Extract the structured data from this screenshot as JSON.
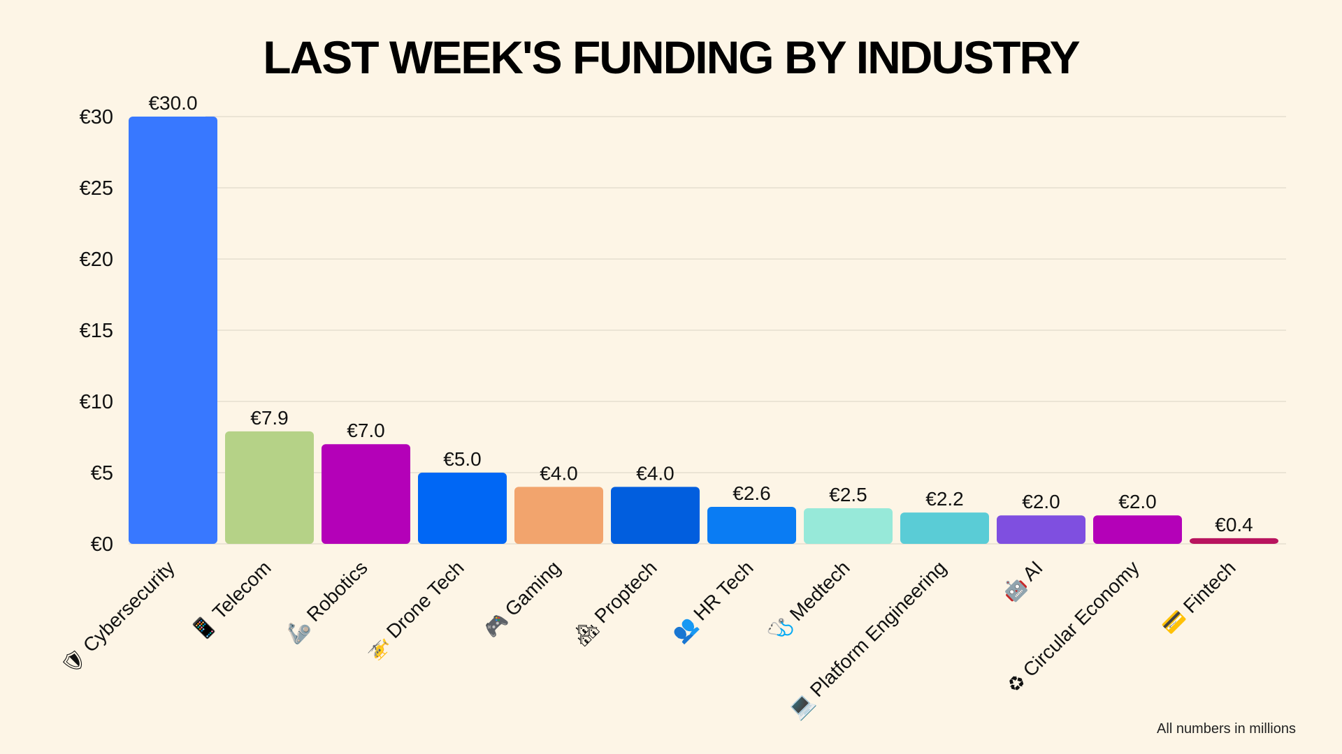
{
  "chart_data": {
    "type": "bar",
    "title": "LAST WEEK'S FUNDING BY INDUSTRY",
    "xlabel": "",
    "ylabel": "",
    "ylim": [
      0,
      30
    ],
    "y_ticks": [
      "€0",
      "€5",
      "€10",
      "€15",
      "€20",
      "€25",
      "€30"
    ],
    "y_tick_values": [
      0,
      5,
      10,
      15,
      20,
      25,
      30
    ],
    "grid": true,
    "footnote": "All numbers in millions",
    "categories": [
      "Cybersecurity",
      "Telecom",
      "Robotics",
      "Drone Tech",
      "Gaming",
      "Proptech",
      "HR Tech",
      "Medtech",
      "Platform Engineering",
      "AI",
      "Circular Economy",
      "Fintech"
    ],
    "icons": [
      "shield-icon",
      "phone-icon",
      "arm-icon",
      "helicopter-icon",
      "gamepad-icon",
      "houses-icon",
      "people-icon",
      "stethoscope-icon",
      "laptop-icon",
      "robot-icon",
      "recycle-icon",
      "credit-card-icon"
    ],
    "icon_glyphs": [
      "🛡",
      "📱",
      "🦾",
      "🚁",
      "🎮",
      "🏘",
      "👥",
      "🩺",
      "💻",
      "🤖",
      "♻",
      "💳"
    ],
    "values": [
      30.0,
      7.9,
      7.0,
      5.0,
      4.0,
      4.0,
      2.6,
      2.5,
      2.2,
      2.0,
      2.0,
      0.4
    ],
    "value_labels": [
      "€30.0",
      "€7.9",
      "€7.0",
      "€5.0",
      "€4.0",
      "€4.0",
      "€2.6",
      "€2.5",
      "€2.2",
      "€2.0",
      "€2.0",
      "€0.4"
    ],
    "colors": [
      "#3878ff",
      "#b5d287",
      "#b401b8",
      "#0067f5",
      "#f2a46d",
      "#015ede",
      "#0a7cf3",
      "#97e9d9",
      "#5accd6",
      "#7f4fe0",
      "#b401b8",
      "#b8145e"
    ]
  }
}
